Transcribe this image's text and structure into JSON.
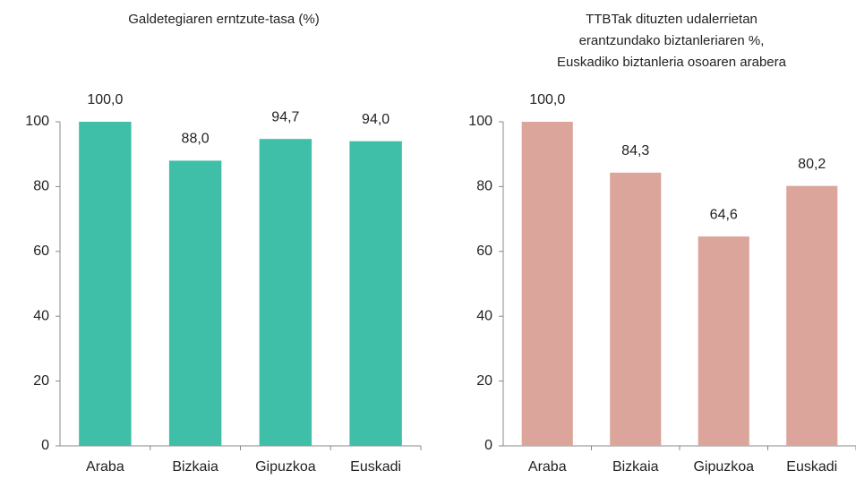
{
  "chart_data": [
    {
      "type": "bar",
      "title": [
        "Galdetegiaren erntzute-tasa (%)"
      ],
      "categories": [
        "Araba",
        "Bizkaia",
        "Gipuzkoa",
        "Euskadi"
      ],
      "values": [
        100,
        88,
        94.7,
        94
      ],
      "value_labels": [
        "100,0",
        "88,0",
        "94,7",
        "94,0"
      ],
      "color": "#40bfa8",
      "ylim": [
        0,
        100
      ],
      "yticks": [
        0,
        20,
        40,
        60,
        80,
        100
      ],
      "grid": false
    },
    {
      "type": "bar",
      "title": [
        "TTBTak dituzten udalerrietan",
        "erantzundako biztanleriaren %,",
        "Euskadiko biztanleria osoaren arabera"
      ],
      "categories": [
        "Araba",
        "Bizkaia",
        "Gipuzkoa",
        "Euskadi"
      ],
      "values": [
        100,
        84.3,
        64.6,
        80.2
      ],
      "value_labels": [
        "100,0",
        "84,3",
        "64,6",
        "80,2"
      ],
      "color": "#dba59b",
      "ylim": [
        0,
        100
      ],
      "yticks": [
        0,
        20,
        40,
        60,
        80,
        100
      ],
      "grid": false
    }
  ]
}
